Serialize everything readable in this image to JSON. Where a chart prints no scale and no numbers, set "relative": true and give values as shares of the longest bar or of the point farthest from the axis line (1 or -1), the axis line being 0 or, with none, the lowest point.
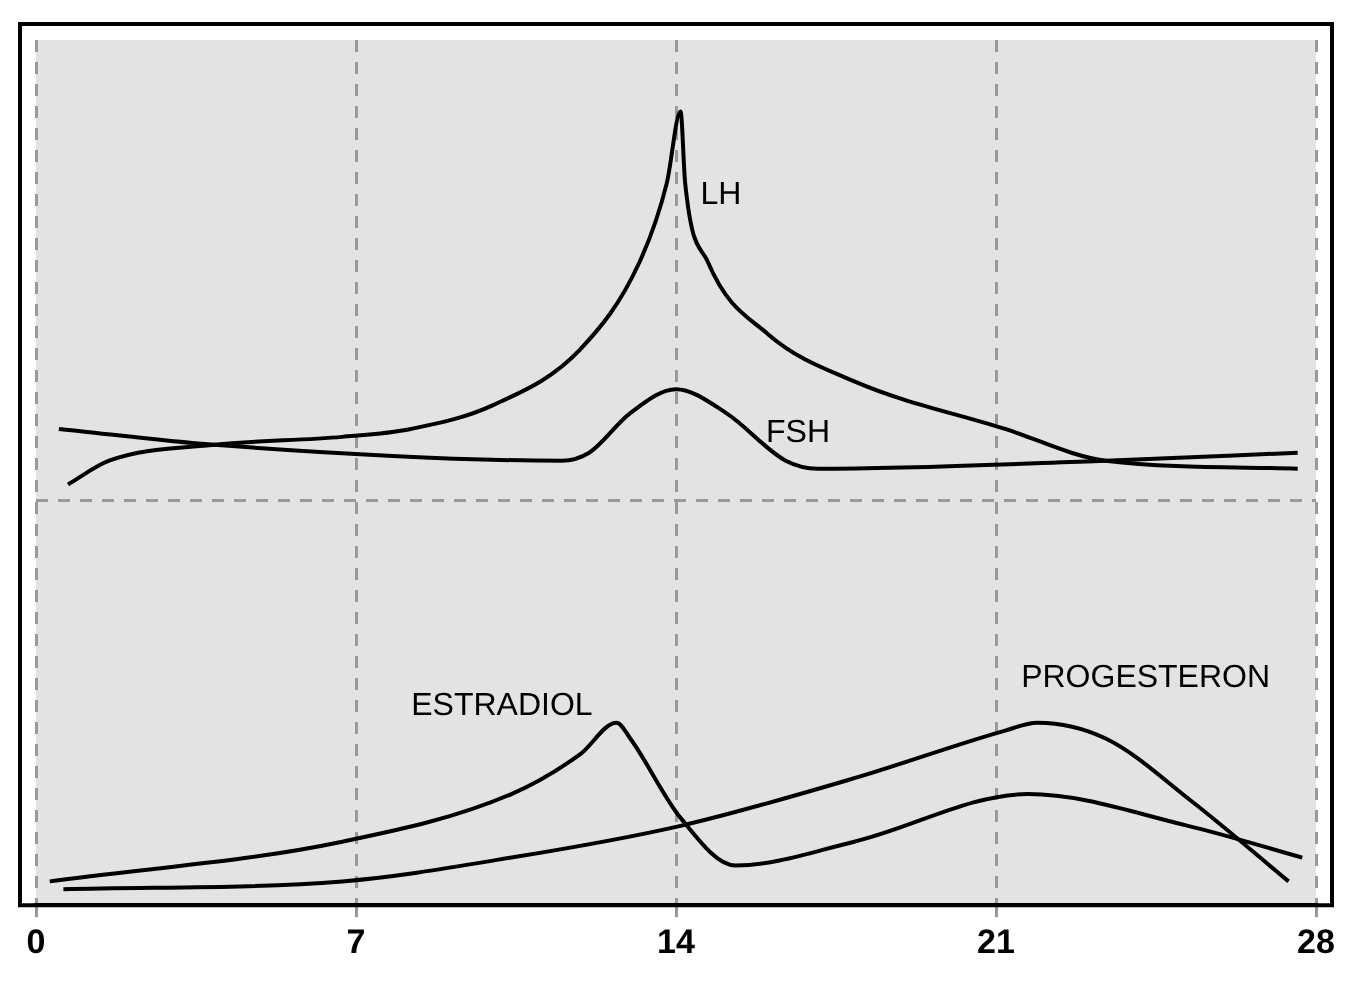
{
  "chart_data": {
    "type": "line",
    "relative": true,
    "xlim": [
      0,
      28
    ],
    "xticks": [
      0,
      7,
      14,
      21,
      28
    ],
    "grid": "x",
    "legend": false,
    "marker": "none",
    "line_style": "solid",
    "ref_lines": [
      {
        "axis": "y",
        "value": 0.51,
        "color": "#999999",
        "line_style": "dashed"
      }
    ],
    "series": [
      {
        "name": "LH",
        "color": "#000000",
        "x": [
          0.7,
          1.6,
          3.9,
          6.7,
          8.2,
          10.0,
          11.9,
          13.2,
          13.8,
          14.1,
          14.2,
          14.7,
          16.0,
          17.9,
          21.2,
          23.4,
          27.6
        ],
        "values": [
          0.53,
          0.56,
          0.58,
          0.59,
          0.6,
          0.63,
          0.7,
          0.81,
          0.91,
          1,
          0.91,
          0.81,
          0.72,
          0.66,
          0.6,
          0.56,
          0.55
        ]
      },
      {
        "name": "FSH",
        "color": "#000000",
        "x": [
          0.5,
          3.9,
          11.5,
          12.1,
          13.0,
          14.0,
          15.1,
          16.4,
          17.1,
          23.4,
          27.6
        ],
        "values": [
          0.6,
          0.58,
          0.56,
          0.57,
          0.62,
          0.65,
          0.62,
          0.56,
          0.55,
          0.56,
          0.57
        ]
      },
      {
        "name": "ESTRADIOL",
        "color": "#000000",
        "x": [
          0.3,
          6.7,
          10.4,
          11.9,
          12.7,
          13.0,
          14.1,
          15.3,
          17.9,
          21.7,
          25.2,
          27.7
        ],
        "values": [
          0.03,
          0.08,
          0.14,
          0.19,
          0.23,
          0.21,
          0.11,
          0.05,
          0.08,
          0.14,
          0.1,
          0.06
        ]
      },
      {
        "name": "PROGESTERON",
        "color": "#000000",
        "x": [
          0.6,
          6.7,
          10.4,
          14.1,
          17.9,
          21.2,
          21.9,
          23.4,
          25.3,
          27.4
        ],
        "values": [
          0.02,
          0.03,
          0.06,
          0.1,
          0.16,
          0.22,
          0.23,
          0.21,
          0.13,
          0.03
        ]
      }
    ]
  }
}
